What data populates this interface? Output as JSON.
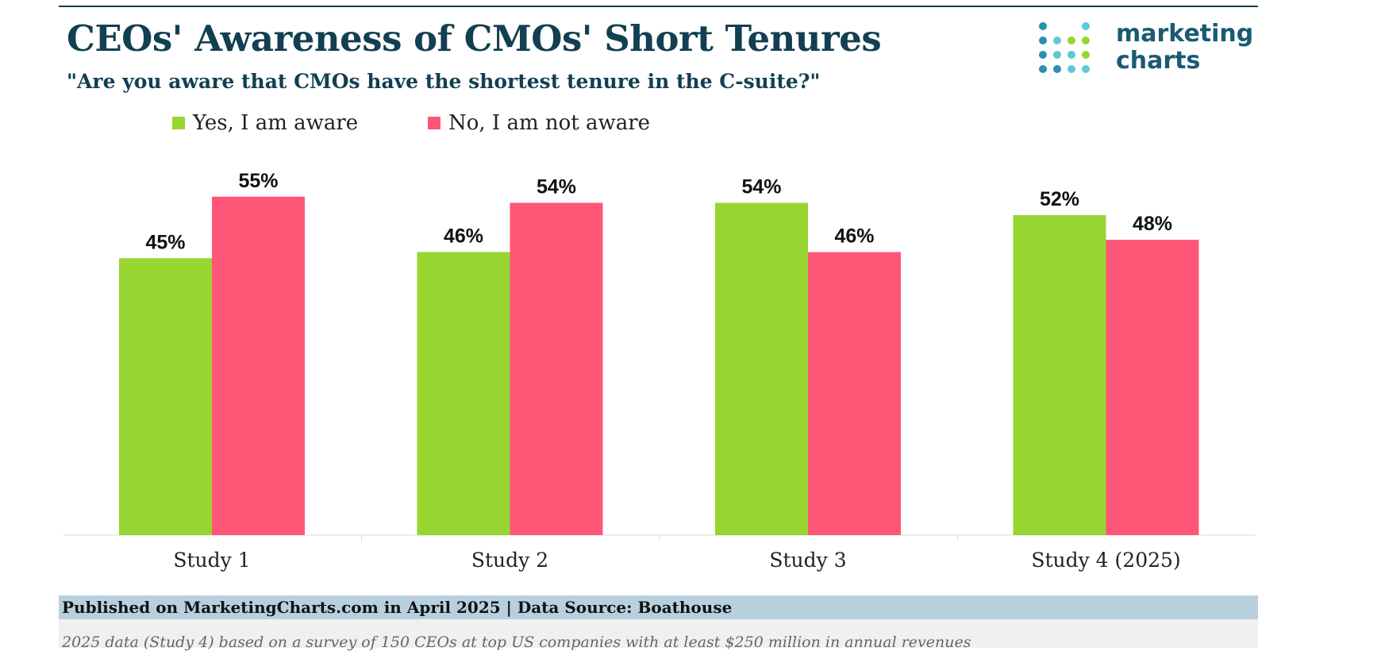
{
  "header": {
    "title": "CEOs' Awareness of CMOs' Short Tenures",
    "subtitle": "\"Are you aware that CMOs have the shortest tenure in the C-suite?\""
  },
  "logo": {
    "line1": "marketing",
    "line2": "charts"
  },
  "colors": {
    "yes": "#97d630",
    "no": "#fe5677",
    "title": "#123f52",
    "source_bar": "#b8d0de"
  },
  "chart_data": {
    "type": "bar",
    "categories": [
      "Study 1",
      "Study 2",
      "Study 3",
      "Study 4 (2025)"
    ],
    "series": [
      {
        "name": "Yes, I am aware",
        "values": [
          45,
          46,
          54,
          52
        ],
        "labels": [
          "45%",
          "46%",
          "54%",
          "52%"
        ]
      },
      {
        "name": "No, I am not aware",
        "values": [
          55,
          54,
          46,
          48
        ],
        "labels": [
          "55%",
          "54%",
          "46%",
          "48%"
        ]
      }
    ],
    "title": "CEOs' Awareness of CMOs' Short Tenures",
    "ylim": [
      0,
      60
    ],
    "grid": false,
    "legend": "top-left"
  },
  "footer": {
    "source": "Published on MarketingCharts.com in April 2025 | Data Source: Boathouse",
    "note": "2025 data (Study 4) based on a survey of 150 CEOs at top US companies with at least $250 million in annual revenues"
  }
}
